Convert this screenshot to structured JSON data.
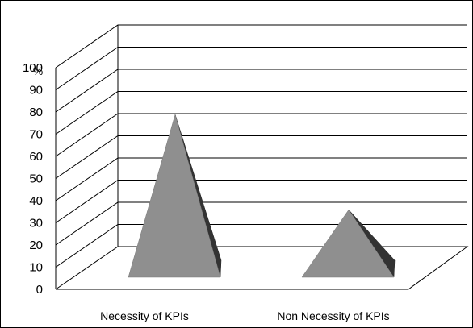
{
  "chart_data": {
    "type": "bar",
    "shape": "3d-pyramid",
    "categories": [
      "Necessity of KPIs",
      "Non Necessity of KPIs"
    ],
    "series": [
      {
        "values": [
          80,
          37
        ]
      }
    ],
    "yticks": [
      "0",
      "10",
      "20",
      "30",
      "40",
      "50",
      "60",
      "70",
      "80",
      "90",
      "100"
    ],
    "ylim": [
      0,
      100
    ],
    "yunit": "%",
    "title": "",
    "xlabel": "",
    "ylabel": "",
    "grid": true,
    "colors": {
      "front": "#8f8f8f",
      "side": "#333333",
      "gridline": "#000000"
    }
  }
}
